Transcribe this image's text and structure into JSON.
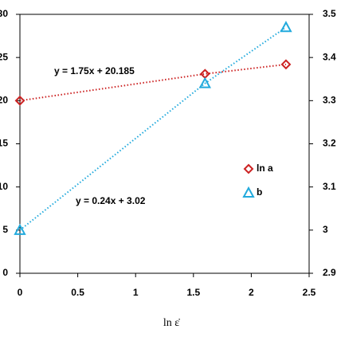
{
  "chart_data": {
    "type": "scatter",
    "x_label": "ln ε̇",
    "x": [
      0,
      1.6,
      2.3
    ],
    "xlim": [
      0,
      2.5
    ],
    "xticks": [
      0,
      0.5,
      1,
      1.5,
      2,
      2.5
    ],
    "ylim": [
      0,
      30
    ],
    "yticks": [
      0,
      5,
      10,
      15,
      20,
      25,
      30
    ],
    "y2lim": [
      2.9,
      3.5
    ],
    "y2ticks": [
      2.9,
      3,
      3.1,
      3.2,
      3.3,
      3.4,
      3.5
    ],
    "legend": "right",
    "series": [
      {
        "name": "ln a",
        "color": "#cc2222",
        "marker": "diamond",
        "values": [
          20.0,
          23.1,
          24.2
        ]
      },
      {
        "name": "b",
        "color": "#22aadd",
        "marker": "triangle",
        "axis": "y2",
        "values": [
          3.0,
          3.34,
          3.47
        ]
      }
    ],
    "annotations": [
      "y = 1.75x + 20.185",
      "y = 0.24x + 3.02"
    ]
  }
}
